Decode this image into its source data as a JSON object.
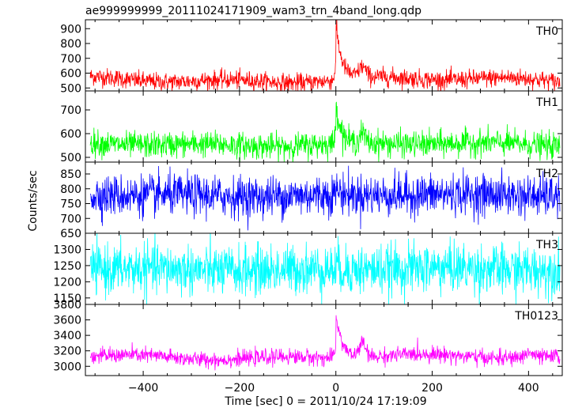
{
  "chart_data": {
    "type": "line",
    "title": "ae999999999_20111024171909_wam3_trn_4band_long.qdp",
    "xlabel": "Time [sec] 0 = 2011/10/24 17:19:09",
    "ylabel": "Counts/sec",
    "xlim": [
      -520,
      470
    ],
    "x_ticks": [
      "−400",
      "−200",
      "0",
      "200",
      "400"
    ],
    "x_tick_values": [
      -400,
      -200,
      0,
      200,
      400
    ],
    "x_range": [
      -510,
      465
    ],
    "panels": [
      {
        "name": "TH0",
        "color": "#ff0000",
        "ylim": [
          480,
          960
        ],
        "y_ticks": [
          500,
          600,
          700,
          800,
          900
        ],
        "baseline": 555,
        "noise": 34,
        "drift": 25,
        "burst": {
          "t0": 0,
          "peak": 380,
          "decay": 12
        },
        "bumps": [
          {
            "t": 55,
            "amp": 70,
            "w": 10
          }
        ]
      },
      {
        "name": "TH1",
        "color": "#00ff00",
        "ylim": [
          480,
          780
        ],
        "y_ticks": [
          500,
          600,
          700
        ],
        "baseline": 555,
        "noise": 30,
        "drift": 10,
        "burst": {
          "t0": 0,
          "peak": 180,
          "decay": 10
        },
        "bumps": [
          {
            "t": 55,
            "amp": 40,
            "w": 8
          }
        ]
      },
      {
        "name": "TH2",
        "color": "#0000ff",
        "ylim": [
          650,
          890
        ],
        "y_ticks": [
          650,
          700,
          750,
          800,
          850
        ],
        "baseline": 778,
        "noise": 38,
        "drift": 5,
        "burst": {
          "t0": 0,
          "peak": 25,
          "decay": 8
        },
        "bumps": []
      },
      {
        "name": "TH3",
        "color": "#00ffff",
        "ylim": [
          1130,
          1350
        ],
        "y_ticks": [
          1150,
          1200,
          1250,
          1300
        ],
        "baseline": 1238,
        "noise": 42,
        "drift": 5,
        "burst": {
          "t0": 0,
          "peak": 10,
          "decay": 8
        },
        "bumps": []
      },
      {
        "name": "TH0123",
        "color": "#ff00ff",
        "ylim": [
          2880,
          3800
        ],
        "y_ticks": [
          3000,
          3200,
          3400,
          3600,
          3800
        ],
        "baseline": 3120,
        "noise": 55,
        "drift": 40,
        "burst": {
          "t0": 0,
          "peak": 580,
          "decay": 13
        },
        "bumps": [
          {
            "t": 55,
            "amp": 180,
            "w": 10
          },
          {
            "t": 400,
            "amp": 60,
            "w": 12
          }
        ]
      }
    ]
  }
}
